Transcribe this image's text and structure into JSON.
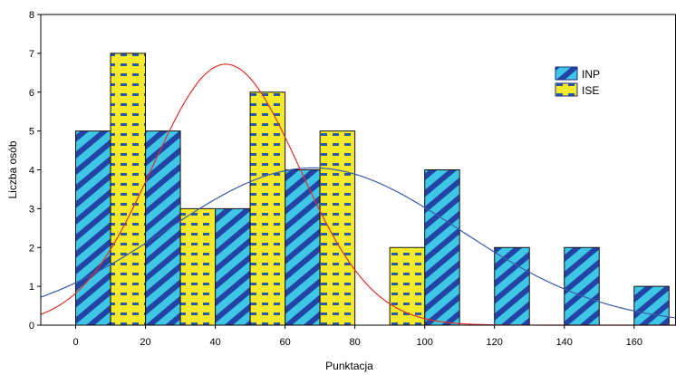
{
  "chart_data": {
    "type": "bar",
    "title": "",
    "xlabel": "Punktacja",
    "ylabel": "Liczba osób",
    "xlim": [
      -10,
      172
    ],
    "ylim": [
      0,
      8
    ],
    "x_ticks": [
      "0",
      "20",
      "40",
      "60",
      "80",
      "100",
      "120",
      "140",
      "160"
    ],
    "x_tick_values": [
      0,
      20,
      40,
      60,
      80,
      100,
      120,
      140,
      160
    ],
    "y_ticks": [
      "0",
      "1",
      "2",
      "3",
      "4",
      "5",
      "6",
      "7",
      "8"
    ],
    "y_tick_values": [
      0,
      1,
      2,
      3,
      4,
      5,
      6,
      7,
      8
    ],
    "grid": false,
    "legend_position": "top-right",
    "series": [
      {
        "name": "INP",
        "pattern": "diagonal-stripes",
        "color_fill": "#3fc6e6",
        "color_stripe": "#2244a4",
        "color_edge": "#1a2f84",
        "bars": [
          {
            "x_start": 0,
            "x_end": 10,
            "value": 5
          },
          {
            "x_start": 20,
            "x_end": 30,
            "value": 5
          },
          {
            "x_start": 40,
            "x_end": 50,
            "value": 3
          },
          {
            "x_start": 60,
            "x_end": 70,
            "value": 4
          },
          {
            "x_start": 100,
            "x_end": 110,
            "value": 4
          },
          {
            "x_start": 120,
            "x_end": 130,
            "value": 2
          },
          {
            "x_start": 140,
            "x_end": 150,
            "value": 2
          },
          {
            "x_start": 160,
            "x_end": 170,
            "value": 1
          }
        ],
        "fit_curve": {
          "mean": 68,
          "sd": 42,
          "peak": 4.05,
          "color": "#3a5ba8"
        }
      },
      {
        "name": "ISE",
        "pattern": "dotted-dashes",
        "color_fill": "#f2ea2a",
        "color_dash": "#2d5aa0",
        "color_edge": "#1a2f84",
        "bars": [
          {
            "x_start": 10,
            "x_end": 20,
            "value": 7
          },
          {
            "x_start": 30,
            "x_end": 40,
            "value": 3
          },
          {
            "x_start": 50,
            "x_end": 60,
            "value": 6
          },
          {
            "x_start": 70,
            "x_end": 80,
            "value": 5
          },
          {
            "x_start": 90,
            "x_end": 100,
            "value": 2
          }
        ],
        "fit_curve": {
          "mean": 43,
          "sd": 21,
          "peak": 6.72,
          "color": "#e0302c"
        }
      }
    ]
  }
}
